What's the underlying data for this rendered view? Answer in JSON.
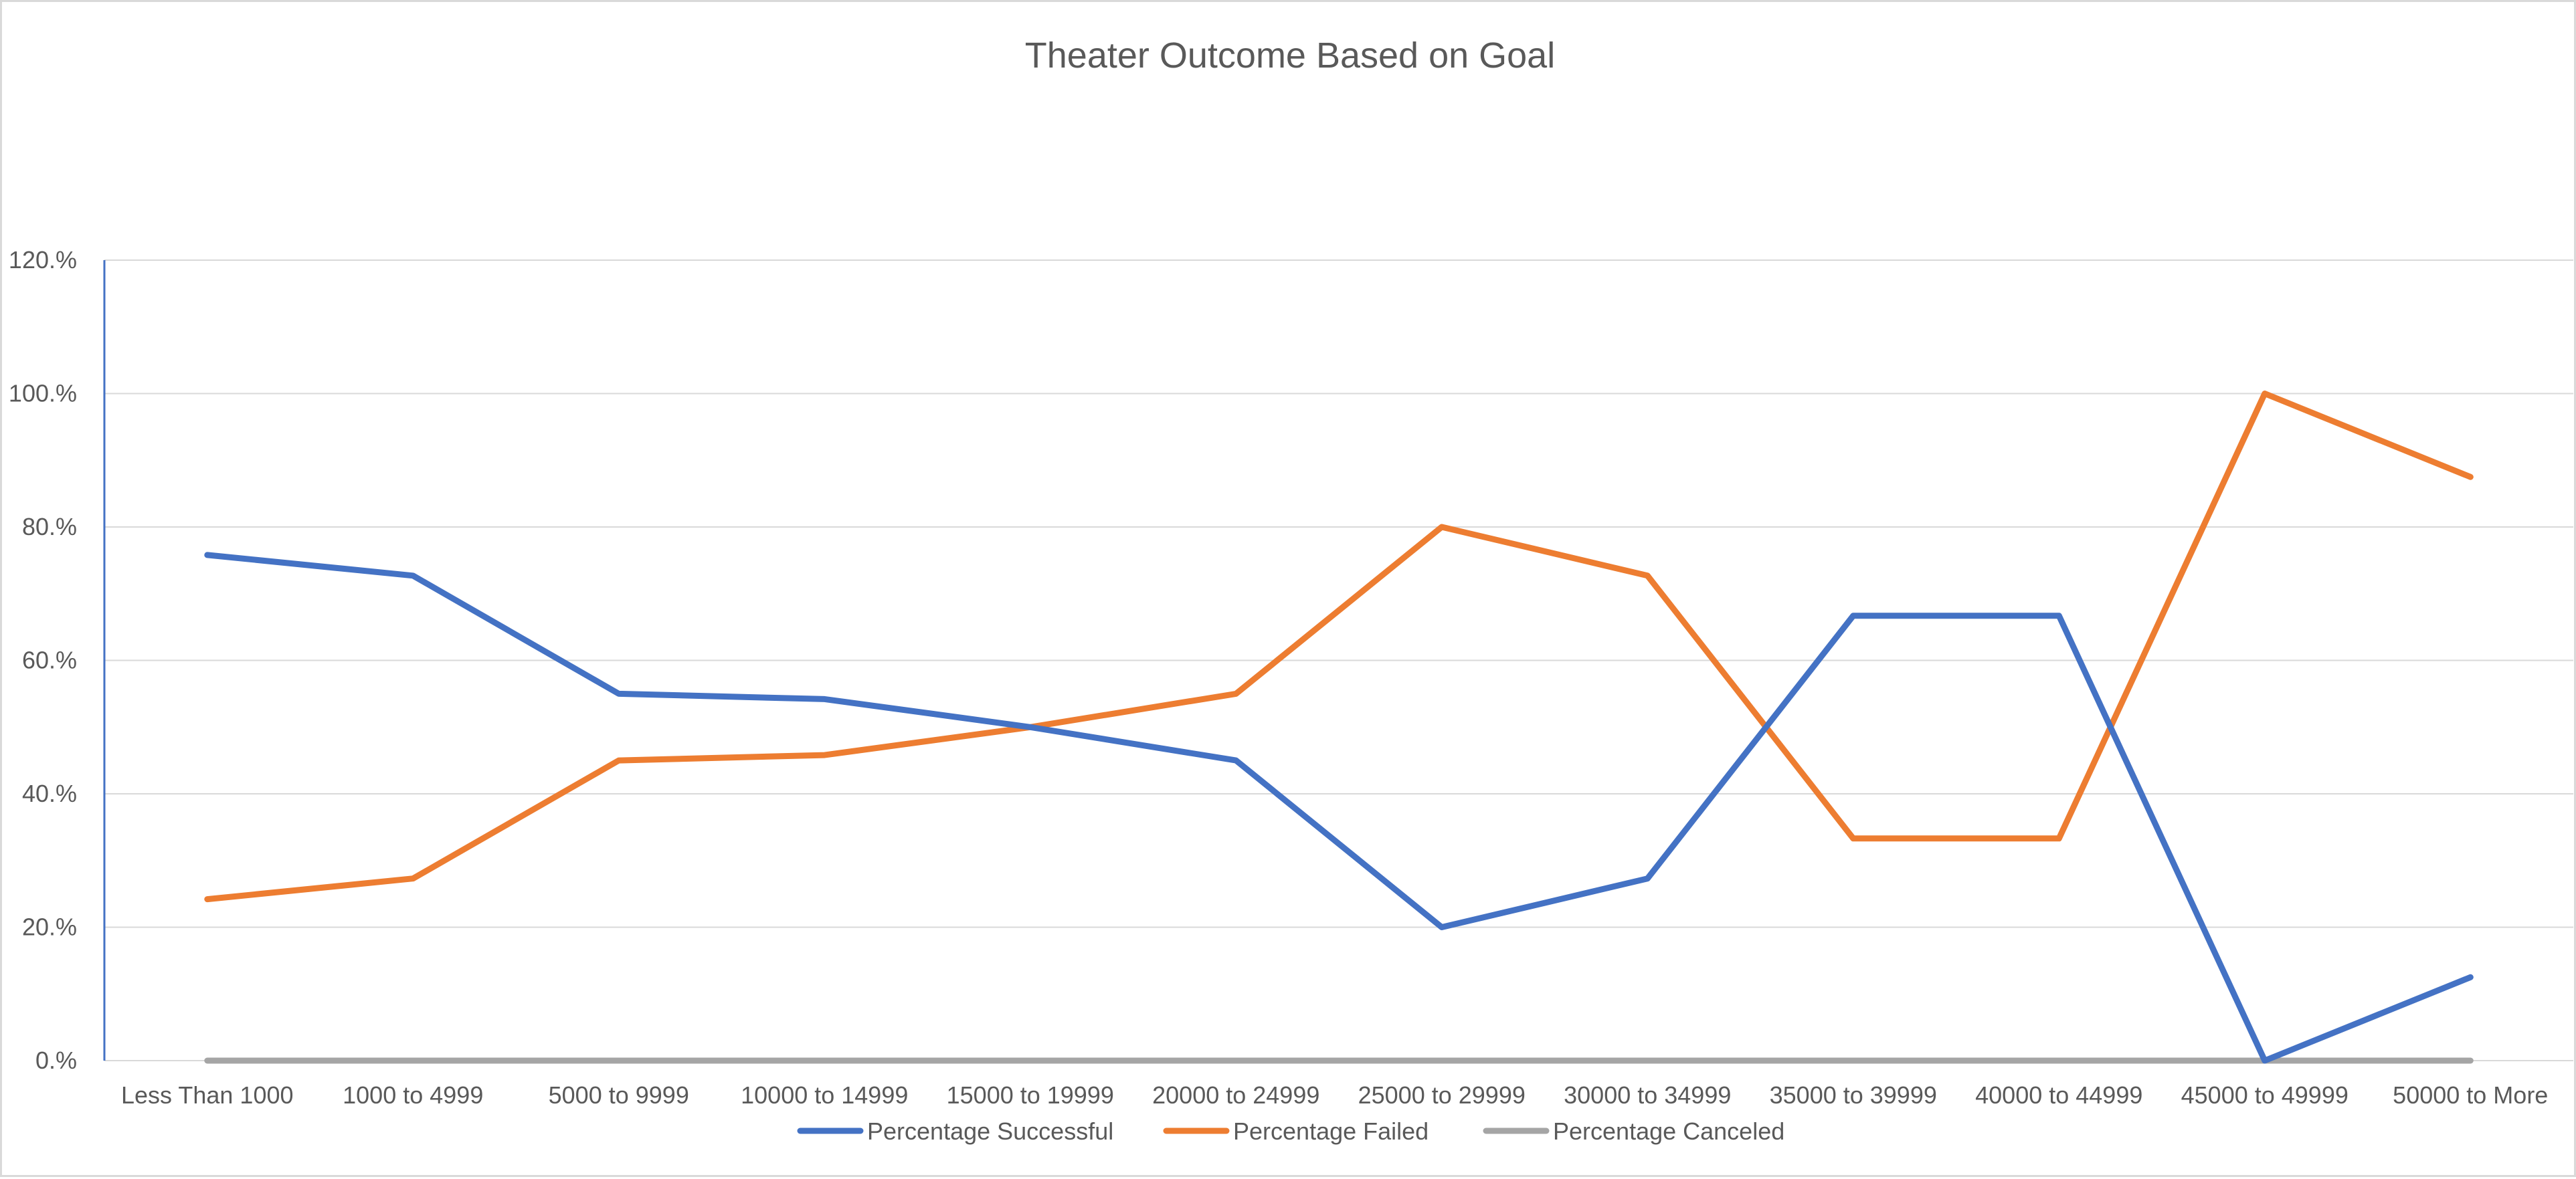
{
  "chart_data": {
    "type": "line",
    "title": "Theater Outcome Based on Goal",
    "xlabel": "",
    "ylabel": "",
    "categories": [
      "Less Than 1000",
      "1000 to 4999",
      "5000 to 9999",
      "10000 to 14999",
      "15000 to 19999",
      "20000 to 24999",
      "25000 to 29999",
      "30000 to 34999",
      "35000 to 39999",
      "40000 to 44999",
      "45000 to 49999",
      "50000 to More"
    ],
    "series": [
      {
        "name": "Percentage Successful",
        "color": "#4472c4",
        "values": [
          75.8,
          72.7,
          55.0,
          54.2,
          50.0,
          45.0,
          20.0,
          27.3,
          66.7,
          66.7,
          0.0,
          12.5
        ]
      },
      {
        "name": "Percentage Failed",
        "color": "#ed7d31",
        "values": [
          24.2,
          27.3,
          45.0,
          45.8,
          50.0,
          55.0,
          80.0,
          72.7,
          33.3,
          33.3,
          100.0,
          87.5
        ]
      },
      {
        "name": "Percentage Canceled",
        "color": "#a5a5a5",
        "values": [
          0,
          0,
          0,
          0,
          0,
          0,
          0,
          0,
          0,
          0,
          0,
          0
        ]
      }
    ],
    "ylim": [
      0,
      120
    ],
    "yticks": [
      "0.%",
      "20.%",
      "40.%",
      "60.%",
      "80.%",
      "100.%",
      "120.%"
    ],
    "grid": true,
    "legend": "bottom"
  }
}
